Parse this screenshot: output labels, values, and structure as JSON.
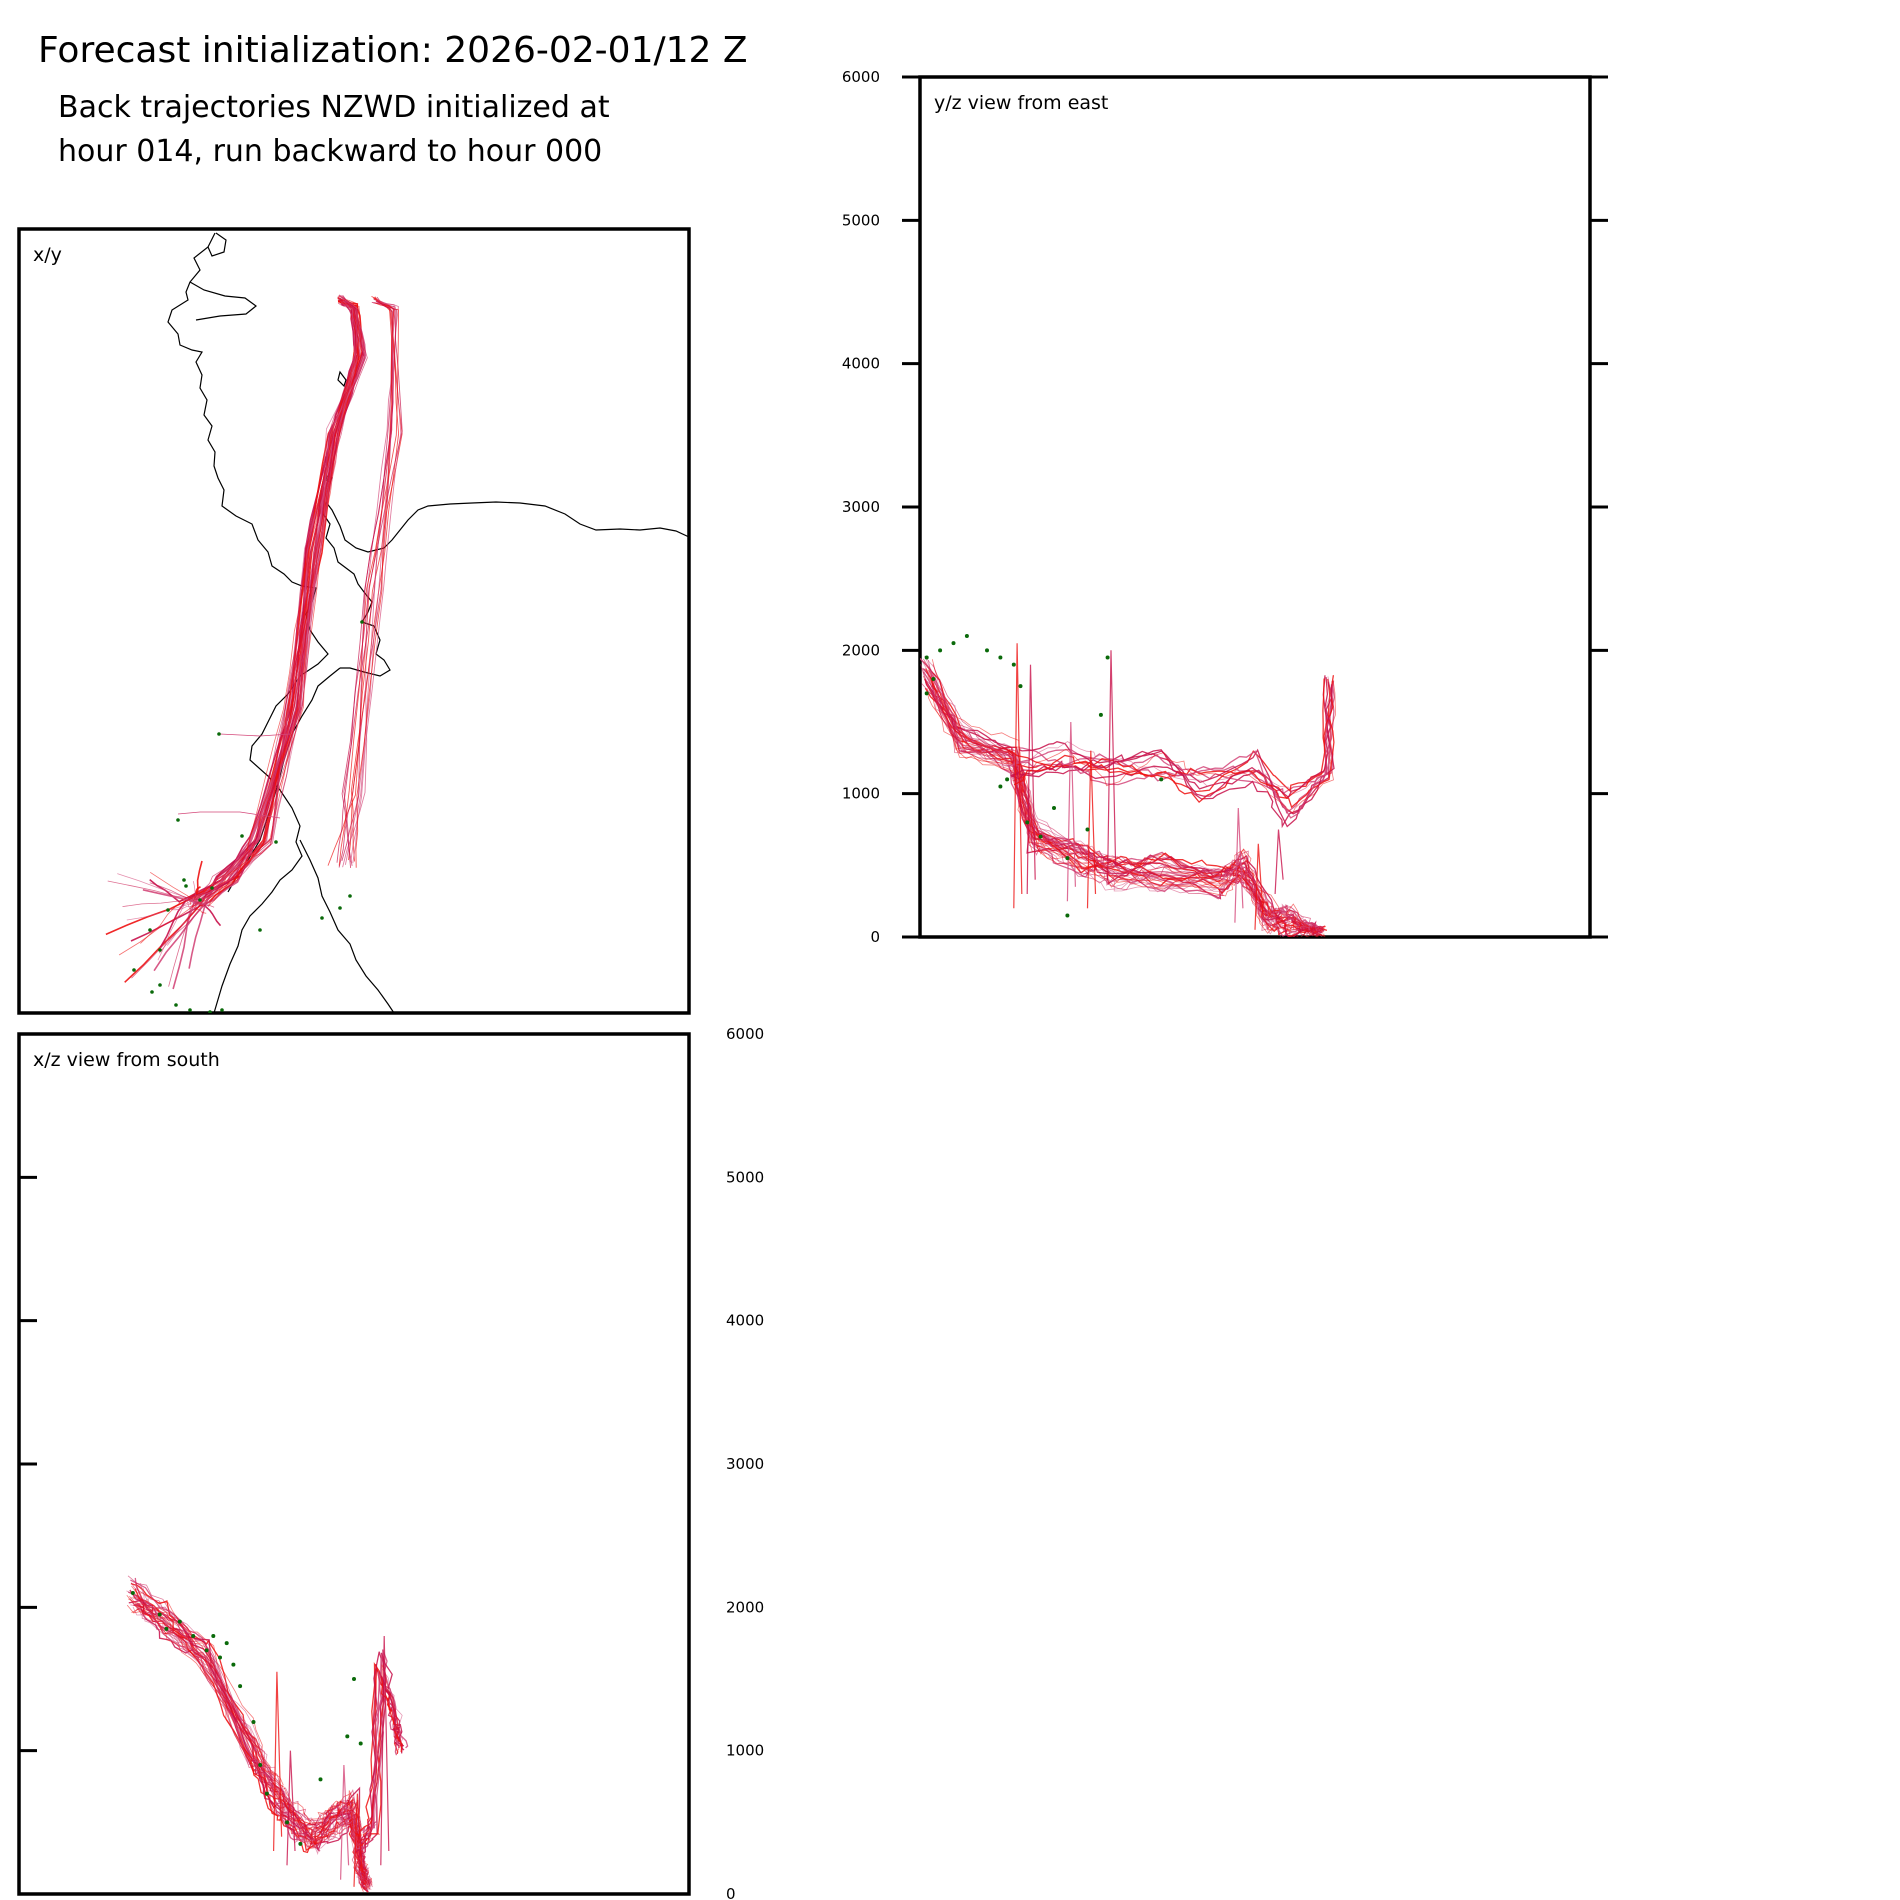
{
  "header": {
    "title": "Forecast initialization: 2026-02-01/12 Z",
    "subtitle_line1": "Back trajectories NZWD initialized at",
    "subtitle_line2": "hour 014, run backward to hour 000"
  },
  "colors": {
    "trajectory_red": "#ee1111",
    "trajectory_crimson": "#c8104a",
    "trajectory_pink": "#d4487a",
    "endpoint_green": "#0a6a0a",
    "coastline": "#000000",
    "frame": "#000000"
  },
  "chart_data": [
    {
      "id": "xy",
      "type": "line",
      "panel_label": "x/y",
      "description_kind": "map",
      "series": [
        {
          "name": "main-coastal",
          "points": [
            [
              0.48,
              0.09
            ],
            [
              0.5,
              0.1
            ],
            [
              0.51,
              0.16
            ],
            [
              0.47,
              0.26
            ],
            [
              0.44,
              0.41
            ],
            [
              0.41,
              0.61
            ],
            [
              0.36,
              0.78
            ],
            [
              0.31,
              0.83
            ],
            [
              0.26,
              0.86
            ],
            [
              0.24,
              0.99
            ]
          ]
        },
        {
          "name": "eastern-arc",
          "points": [
            [
              0.53,
              0.09
            ],
            [
              0.56,
              0.1
            ],
            [
              0.56,
              0.26
            ],
            [
              0.53,
              0.46
            ],
            [
              0.5,
              0.72
            ],
            [
              0.48,
              0.81
            ]
          ]
        }
      ]
    },
    {
      "id": "yz",
      "type": "line",
      "panel_label": "y/z view from east",
      "ylim": [
        0,
        6000
      ],
      "yticks": [
        "0",
        "1000",
        "2000",
        "3000",
        "4000",
        "5000",
        "6000"
      ],
      "series": [
        {
          "name": "low-branch",
          "points": [
            [
              0.01,
              1850
            ],
            [
              0.06,
              1400
            ],
            [
              0.14,
              1250
            ],
            [
              0.17,
              700
            ],
            [
              0.24,
              550
            ],
            [
              0.29,
              450
            ],
            [
              0.36,
              450
            ],
            [
              0.45,
              400
            ],
            [
              0.48,
              500
            ],
            [
              0.52,
              150
            ],
            [
              0.55,
              100
            ],
            [
              0.58,
              60
            ],
            [
              0.6,
              40
            ]
          ]
        },
        {
          "name": "high-branch",
          "points": [
            [
              0.14,
              1200
            ],
            [
              0.21,
              1250
            ],
            [
              0.28,
              1150
            ],
            [
              0.36,
              1200
            ],
            [
              0.42,
              1050
            ],
            [
              0.5,
              1200
            ],
            [
              0.55,
              900
            ],
            [
              0.61,
              1150
            ],
            [
              0.61,
              1800
            ]
          ]
        }
      ]
    },
    {
      "id": "xz",
      "type": "line",
      "panel_label": "x/z view from south",
      "ylim": [
        0,
        6000
      ],
      "yticks": [
        "0",
        "1000",
        "2000",
        "3000",
        "4000",
        "5000",
        "6000"
      ],
      "series": [
        {
          "name": "bundle",
          "points": [
            [
              0.17,
              2100
            ],
            [
              0.22,
              1900
            ],
            [
              0.28,
              1650
            ],
            [
              0.35,
              1000
            ],
            [
              0.38,
              700
            ],
            [
              0.41,
              500
            ],
            [
              0.44,
              400
            ],
            [
              0.47,
              500
            ],
            [
              0.5,
              600
            ],
            [
              0.51,
              200
            ],
            [
              0.52,
              50
            ]
          ]
        },
        {
          "name": "spike",
          "points": [
            [
              0.51,
              300
            ],
            [
              0.53,
              500
            ],
            [
              0.54,
              1600
            ],
            [
              0.56,
              1200
            ],
            [
              0.57,
              1000
            ]
          ]
        }
      ]
    }
  ]
}
